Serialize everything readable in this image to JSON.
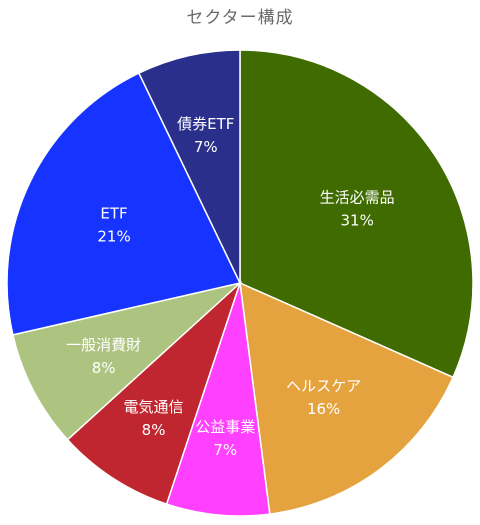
{
  "chart_data": {
    "type": "pie",
    "title": "セクター構成",
    "start": "12 o'clock",
    "direction": "clockwise",
    "slices": [
      {
        "name": "生活必需品",
        "value": 31,
        "label": "31%",
        "color": "#3f6b00"
      },
      {
        "name": "ヘルスケア",
        "value": 16,
        "label": "16%",
        "color": "#e5a33f"
      },
      {
        "name": "公益事業",
        "value": 7,
        "label": "7%",
        "color": "#ff40ff"
      },
      {
        "name": "電気通信",
        "value": 8,
        "label": "8%",
        "color": "#c0262f"
      },
      {
        "name": "一般消費財",
        "value": 8,
        "label": "8%",
        "color": "#adc380"
      },
      {
        "name": "ETF",
        "value": 21,
        "label": "21%",
        "color": "#1633ff"
      },
      {
        "name": "債券ETF",
        "value": 7,
        "label": "7%",
        "color": "#2a2f8c"
      }
    ]
  }
}
